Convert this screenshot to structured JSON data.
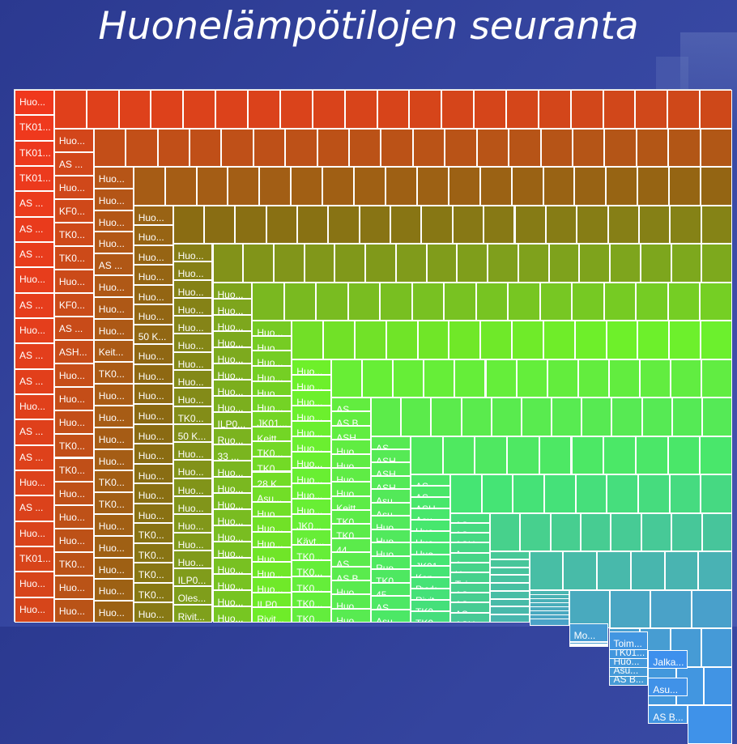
{
  "page": {
    "title": "Huonelämpötilojen seuranta"
  },
  "chart_data": {
    "type": "treemap",
    "color_scale": [
      "#f0381d",
      "#8a6a12",
      "#6ef02a",
      "#45e672",
      "#4aa1c9",
      "#3b8cf5"
    ],
    "columns": [
      {
        "labels": [
          "Huo...",
          "TK01...",
          "TK01...",
          "TK01...",
          "AS ...",
          "AS ...",
          "AS ...",
          "Huo...",
          "AS ...",
          "Huo...",
          "AS ...",
          "AS ...",
          "Huo...",
          "AS ...",
          "AS ...",
          "Huo...",
          "AS ...",
          "Huo...",
          "TK01...",
          "Huo...",
          "Huo..."
        ]
      },
      {
        "labels": [
          "Huo...",
          "AS ...",
          "Huo...",
          "KF0...",
          "TK0...",
          "TK0...",
          "Huo...",
          "KF0...",
          "AS ...",
          "ASH...",
          "Huo...",
          "Huo...",
          "Huo...",
          "TK0...",
          "TK0...",
          "Huo...",
          "Huo...",
          "Huo...",
          "TK0...",
          "Huo...",
          "Huo..."
        ]
      },
      {
        "labels": [
          "Huo...",
          "Huo...",
          "Huo...",
          "Huo...",
          "AS ...",
          "Huo...",
          "Huo...",
          "Huo...",
          "Keit...",
          "TK0...",
          "Huo...",
          "Huo...",
          "Huo...",
          "Huo...",
          "TK0...",
          "TK0...",
          "Huo...",
          "Huo...",
          "Huo...",
          "Huo...",
          "Huo..."
        ]
      },
      {
        "labels": [
          "Huo...",
          "Huo...",
          "Huo...",
          "Huo...",
          "Huo...",
          "Huo...",
          "50 K...",
          "Huo...",
          "Huo...",
          "Huo...",
          "Huo...",
          "Huo...",
          "Huo...",
          "Huo...",
          "Huo...",
          "Huo...",
          "TK0...",
          "TK0...",
          "TK0...",
          "TK0...",
          "Huo..."
        ]
      },
      {
        "labels": [
          "Huo...",
          "Huo...",
          "Huo...",
          "Huo...",
          "Huo...",
          "Huo...",
          "Huo...",
          "Huo...",
          "Huo...",
          "TK0...",
          "50 K...",
          "Huo...",
          "Huo...",
          "Huo...",
          "Huo...",
          "Huo...",
          "Huo...",
          "Huo...",
          "ILP0...",
          "Oles...",
          "Rivit..."
        ]
      },
      {
        "labels": [
          "Huo...",
          "Huo...",
          "Huo...",
          "Huo...",
          "Huo...",
          "Huo...",
          "Huo...",
          "Huo...",
          "ILP0...",
          "Ruo...",
          "33 ...",
          "Huo...",
          "Huo...",
          "Huo...",
          "Huo...",
          "Huo...",
          "Huo...",
          "Huo...",
          "Huo...",
          "Huo...",
          "Huo..."
        ]
      },
      {
        "labels": [
          "Huo...",
          "Huo...",
          "Huo...",
          "Huo...",
          "Huo...",
          "Huo...",
          "JK01...",
          "Keitt...",
          "TK0...",
          "TK0...",
          "28 K...",
          "Asu...",
          "Huo...",
          "Huo...",
          "Huo...",
          "Huo...",
          "Huo...",
          "Huo...",
          "ILP0...",
          "Rivit..."
        ]
      },
      {
        "labels": [
          "Huo...",
          "Huo...",
          "Huo...",
          "Huo...",
          "Huo...",
          "Huo...",
          "Huo...",
          "Huo...",
          "Huo...",
          "Huo...",
          "JK0...",
          "Käyt...",
          "TK0...",
          "TK0...",
          "TK0...",
          "TK0...",
          "TK0..."
        ]
      },
      {
        "labels": [
          "AS ...",
          "AS B...",
          "ASH...",
          "Huo...",
          "Huo...",
          "Huo...",
          "Huo...",
          "Keitt...",
          "TK0...",
          "TK0...",
          "44 ...",
          "AS ...",
          "AS B...",
          "Huo...",
          "Huo...",
          "Huo..."
        ]
      },
      {
        "labels": [
          "AS ...",
          "ASH...",
          "ASH...",
          "ASH...",
          "Asu...",
          "Asu...",
          "Huo...",
          "Huo...",
          "Huo...",
          "Ruo...",
          "TK0...",
          "45 ...",
          "AS ...",
          "Asu..."
        ]
      },
      {
        "labels": [
          "AS ...",
          "AS ...",
          "ASH...",
          "Asu...",
          "Huo...",
          "Huo...",
          "Huo...",
          "JK01...",
          "Kan...",
          "Pyyk...",
          "Rivit...",
          "TK0...",
          "TK0..."
        ]
      },
      {
        "labels": [
          "AS ...",
          "AS ...",
          "ASH...",
          "Asu...",
          "Asu...",
          "Huo...",
          "Toi...",
          "AS ...",
          "AS ...",
          "AS ...",
          "ASH..."
        ]
      },
      {
        "labels": [
          "TK0...",
          "AS...",
          "Asu...",
          "Asu...",
          "Asu...",
          "Asu...",
          "Asu...",
          "Asu...",
          "Asu..."
        ]
      },
      {
        "labels": [
          "Asu...",
          "Asu...",
          "Jake...",
          "Kam...",
          "TK0...",
          "TK0...",
          "TK0...",
          "ASH..."
        ]
      },
      {
        "labels": [
          "TK0...",
          "Asu...",
          "Asu...",
          "Hu...",
          "Hu...",
          "Mo..."
        ]
      },
      {
        "labels": [
          "AS B...",
          "Asu...",
          "Huo...",
          "TK01...",
          "Toim..."
        ]
      },
      {
        "labels": [
          "AS B...",
          "Asu...",
          "Jalka..."
        ]
      }
    ],
    "bands": [
      {
        "cells": 21
      },
      {
        "cells": 20
      },
      {
        "cells": 19
      },
      {
        "cells": 18
      },
      {
        "cells": 17
      },
      {
        "cells": 15
      },
      {
        "cells": 14
      },
      {
        "cells": 13
      },
      {
        "cells": 12
      },
      {
        "cells": 10
      },
      {
        "cells": 9
      },
      {
        "cells": 8
      },
      {
        "cells": 6
      },
      {
        "cells": 4
      },
      {
        "cells": 4
      },
      {
        "cells": 3
      },
      {
        "cells": 1
      }
    ]
  }
}
